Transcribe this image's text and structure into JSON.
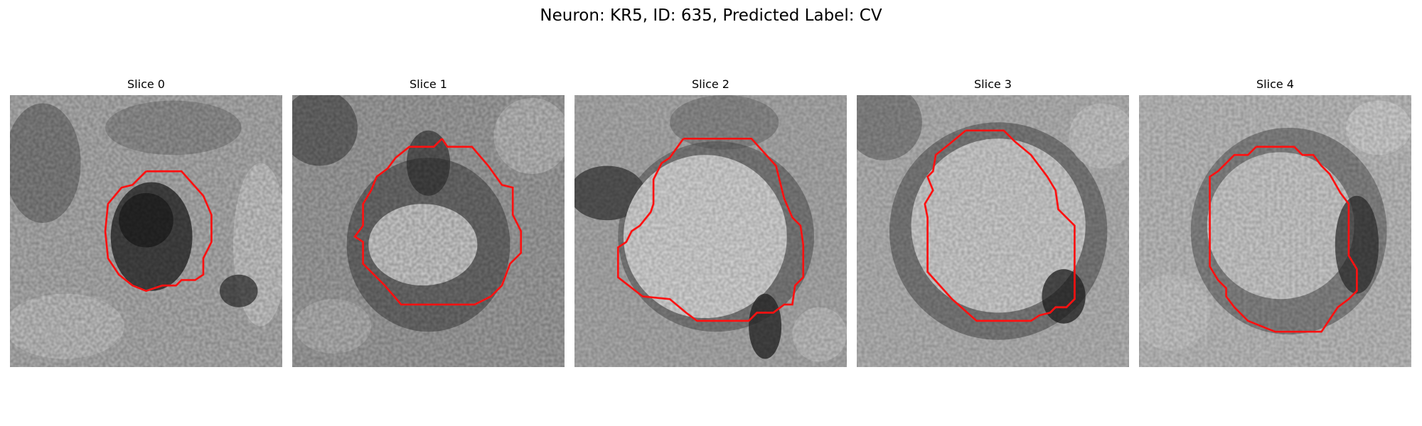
{
  "figure": {
    "title": "Neuron: KR5, ID: 635, Predicted Label: CV"
  },
  "slices": [
    {
      "title": "Slice 0"
    },
    {
      "title": "Slice 1"
    },
    {
      "title": "Slice 2"
    },
    {
      "title": "Slice 3"
    },
    {
      "title": "Slice 4"
    }
  ],
  "colors": {
    "contour": "#ff1111",
    "background": "#ffffff"
  }
}
